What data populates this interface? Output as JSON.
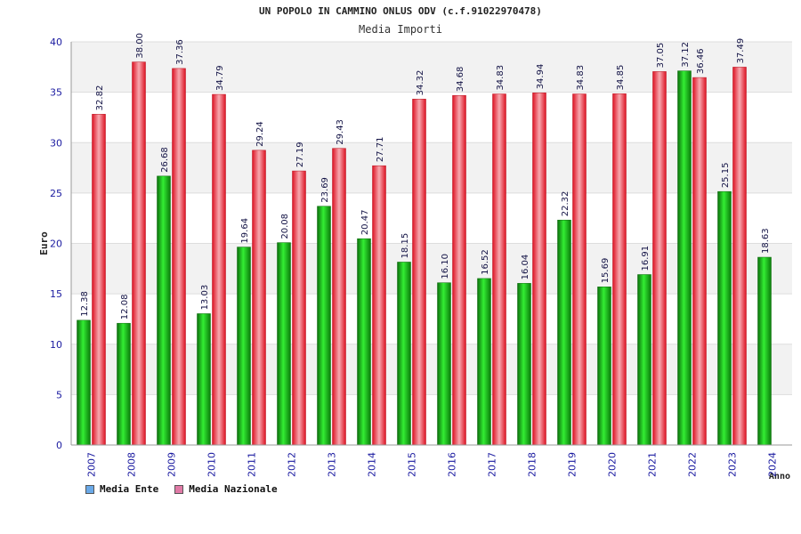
{
  "title": "UN POPOLO IN CAMMINO ONLUS ODV (c.f.91022970478)",
  "subtitle": "Media Importi",
  "colors": {
    "ente": "#11aa11",
    "nazionale": "#ee2233",
    "legend_ente": "#6aa9e8",
    "legend_nazionale": "#e07aa6",
    "axis_text": "#1a1aa0"
  },
  "legend": [
    {
      "label": "Media Ente"
    },
    {
      "label": "Media Nazionale"
    }
  ],
  "chart_data": {
    "type": "bar",
    "xlabel": "Anno",
    "ylabel": "Euro",
    "ylim": [
      0,
      40
    ],
    "yticks": [
      0,
      5,
      10,
      15,
      20,
      25,
      30,
      35,
      40
    ],
    "grid": true,
    "legend_position": "bottom-left",
    "categories": [
      "2007",
      "2008",
      "2009",
      "2010",
      "2011",
      "2012",
      "2013",
      "2014",
      "2015",
      "2016",
      "2017",
      "2018",
      "2019",
      "2020",
      "2021",
      "2022",
      "2023",
      "2024"
    ],
    "series": [
      {
        "name": "Media Ente",
        "values": [
          12.38,
          12.08,
          26.68,
          13.03,
          19.64,
          20.08,
          23.69,
          20.47,
          18.15,
          16.1,
          16.52,
          16.04,
          22.32,
          15.69,
          16.91,
          37.12,
          25.15,
          18.63
        ],
        "labels": [
          "12.38",
          "12.08",
          "26.68",
          "13.03",
          "19.64",
          "20.08",
          "23.69",
          "20.47",
          "18.15",
          "16.10",
          "16.52",
          "16.04",
          "22.32",
          "15.69",
          "16.91",
          "37.12",
          "25.15",
          "18.63"
        ]
      },
      {
        "name": "Media Nazionale",
        "values": [
          32.82,
          38.0,
          37.36,
          34.79,
          29.24,
          27.19,
          29.43,
          27.71,
          34.32,
          34.68,
          34.83,
          34.94,
          34.83,
          34.85,
          37.05,
          36.46,
          37.49,
          null
        ],
        "labels": [
          "32.82",
          "38.00",
          "37.36",
          "34.79",
          "29.24",
          "27.19",
          "29.43",
          "27.71",
          "34.32",
          "34.68",
          "34.83",
          "34.94",
          "34.83",
          "34.85",
          "37.05",
          "36.46",
          "37.49",
          ""
        ]
      }
    ]
  }
}
